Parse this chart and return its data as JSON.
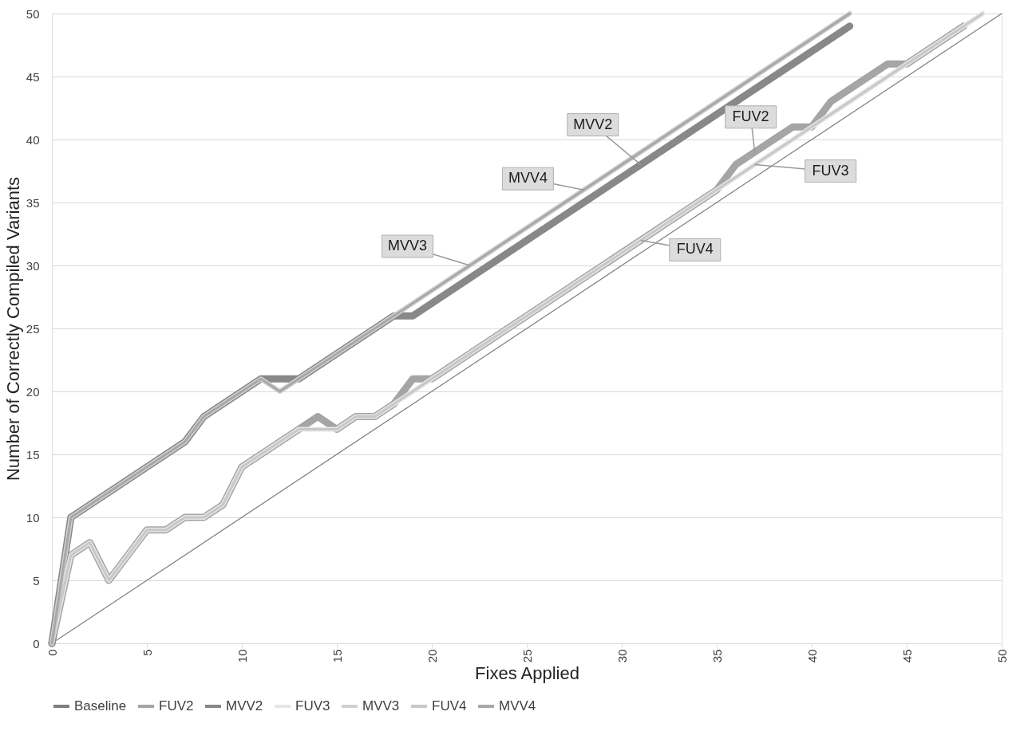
{
  "chart_data": {
    "type": "line",
    "xlabel": "Fixes Applied",
    "ylabel": "Number of Correctly Compiled Variants",
    "xlim": [
      0,
      50
    ],
    "ylim": [
      0,
      50
    ],
    "xticks": [
      0,
      5,
      10,
      15,
      20,
      25,
      30,
      35,
      40,
      45,
      50
    ],
    "yticks": [
      0,
      5,
      10,
      15,
      20,
      25,
      30,
      35,
      40,
      45,
      50
    ],
    "grid": "y",
    "legend": "bottom",
    "line_style": "solid",
    "marker": "none",
    "series": [
      {
        "name": "Baseline",
        "color": "#7f7f7f",
        "x": [
          0,
          50
        ],
        "values": [
          0,
          50
        ]
      },
      {
        "name": "FUV2",
        "color": "#a5a5a6",
        "x": [
          0,
          1,
          2,
          3,
          4,
          5,
          6,
          7,
          8,
          9,
          10,
          11,
          12,
          13,
          14,
          15,
          16,
          17,
          18,
          19,
          20,
          35,
          36,
          37,
          38,
          39,
          40,
          41,
          42,
          43,
          44,
          45,
          48
        ],
        "values": [
          0,
          7,
          8,
          5,
          7,
          9,
          9,
          10,
          10,
          11,
          14,
          15,
          16,
          17,
          18,
          17,
          18,
          18,
          19,
          21,
          21,
          36,
          38,
          39,
          40,
          41,
          41,
          43,
          44,
          45,
          46,
          46,
          49
        ]
      },
      {
        "name": "MVV2",
        "color": "#87888a",
        "x": [
          0,
          1,
          7,
          8,
          11,
          12,
          13,
          18,
          19,
          42
        ],
        "values": [
          0,
          10,
          16,
          18,
          21,
          21,
          21,
          26,
          26,
          49
        ]
      },
      {
        "name": "FUV3",
        "color": "#e6e6e6",
        "x": [
          0,
          1,
          2,
          3,
          4,
          5,
          6,
          7,
          8,
          9,
          10,
          11,
          12,
          13,
          14,
          15,
          16,
          17,
          49
        ],
        "values": [
          0,
          7,
          8,
          5,
          7,
          9,
          9,
          10,
          10,
          11,
          14,
          15,
          16,
          17,
          17,
          17,
          18,
          18,
          50
        ]
      },
      {
        "name": "MVV3",
        "color": "#d0d0d0",
        "x": [
          0,
          1,
          7,
          8,
          11,
          12,
          42
        ],
        "values": [
          0,
          10,
          16,
          18,
          21,
          20,
          50
        ]
      },
      {
        "name": "FUV4",
        "color": "#c8c8c8",
        "x": [
          0,
          1,
          2,
          3,
          4,
          5,
          6,
          7,
          8,
          9,
          10,
          11,
          12,
          13,
          14,
          15,
          16,
          17,
          49
        ],
        "values": [
          0,
          7,
          8,
          5,
          7,
          9,
          9,
          10,
          10,
          11,
          14,
          15,
          16,
          17,
          17,
          17,
          18,
          18,
          50
        ]
      },
      {
        "name": "MVV4",
        "color": "#a8a8a8",
        "x": [
          0,
          1,
          7,
          8,
          11,
          12,
          42
        ],
        "values": [
          0,
          10,
          16,
          18,
          21,
          20,
          50
        ]
      }
    ],
    "annotations": [
      {
        "text": "MVV2",
        "x": 31,
        "y": 38
      },
      {
        "text": "MVV4",
        "x": 28,
        "y": 36
      },
      {
        "text": "MVV3",
        "x": 22,
        "y": 30
      },
      {
        "text": "FUV2",
        "x": 37,
        "y": 39
      },
      {
        "text": "FUV3",
        "x": 37,
        "y": 38
      },
      {
        "text": "FUV4",
        "x": 31,
        "y": 32
      }
    ]
  }
}
